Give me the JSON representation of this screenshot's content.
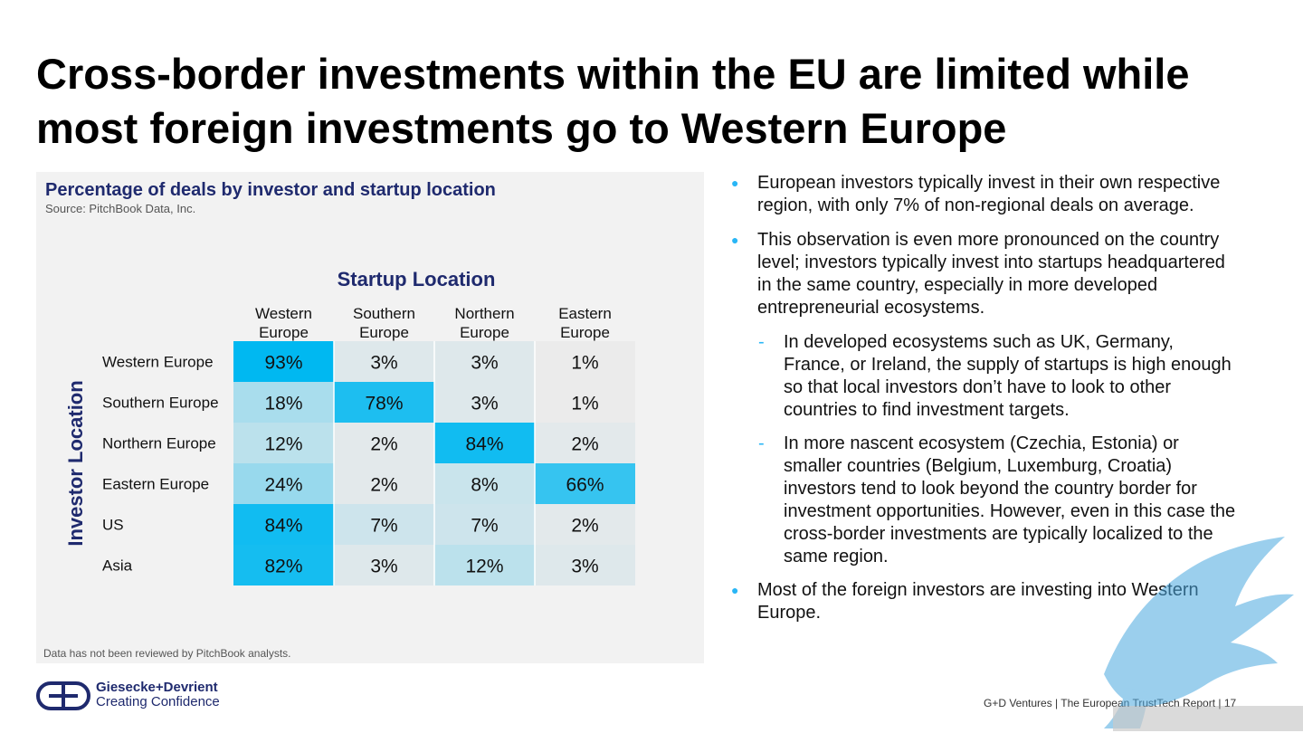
{
  "title": "Cross-border investments within the EU are limited while most foreign investments go to Western Europe",
  "chart_data": {
    "type": "heatmap",
    "title": "Percentage of deals by investor and startup location",
    "source": "Source: PitchBook Data, Inc.",
    "footnote": "Data has not been reviewed by PitchBook analysts.",
    "x_title": "Startup Location",
    "y_title": "Investor Location",
    "columns": [
      [
        "Western",
        "Europe"
      ],
      [
        "Southern",
        "Europe"
      ],
      [
        "Northern",
        "Europe"
      ],
      [
        "Eastern",
        "Europe"
      ]
    ],
    "rows": [
      "Western Europe",
      "Southern Europe",
      "Northern Europe",
      "Eastern Europe",
      "US",
      "Asia"
    ],
    "values": [
      [
        93,
        3,
        3,
        1
      ],
      [
        18,
        78,
        3,
        1
      ],
      [
        12,
        2,
        84,
        2
      ],
      [
        24,
        2,
        8,
        66
      ],
      [
        84,
        7,
        7,
        2
      ],
      [
        82,
        3,
        12,
        3
      ]
    ],
    "unit": "%",
    "color_low": "#ebebeb",
    "color_high": "#00b8f1"
  },
  "bullets": [
    {
      "level": 1,
      "text": "European investors typically invest in their own respective region, with only 7% of non-regional deals on average."
    },
    {
      "level": 1,
      "text": "This observation is even more pronounced on the country level; investors typically invest into startups headquartered in the same country, especially in more developed entrepreneurial ecosystems."
    },
    {
      "level": 2,
      "text": "In developed ecosystems such as UK, Germany, France, or Ireland, the supply of startups is high enough so that local investors don’t have to look to other countries to find investment targets."
    },
    {
      "level": 2,
      "text": "In more nascent ecosystem (Czechia, Estonia) or smaller countries (Belgium, Luxemburg, Croatia) investors tend to look beyond the country border for investment opportunities. However, even in this case the cross-border investments are typically localized to the same region."
    },
    {
      "level": 1,
      "text": "Most of the foreign investors are investing into Western Europe."
    }
  ],
  "logo": {
    "name": "Giesecke+Devrient",
    "tagline": "Creating Confidence",
    "color": "#1f2a6e"
  },
  "footer": "G+D Ventures  |  The European TrustTech Report  |  17"
}
